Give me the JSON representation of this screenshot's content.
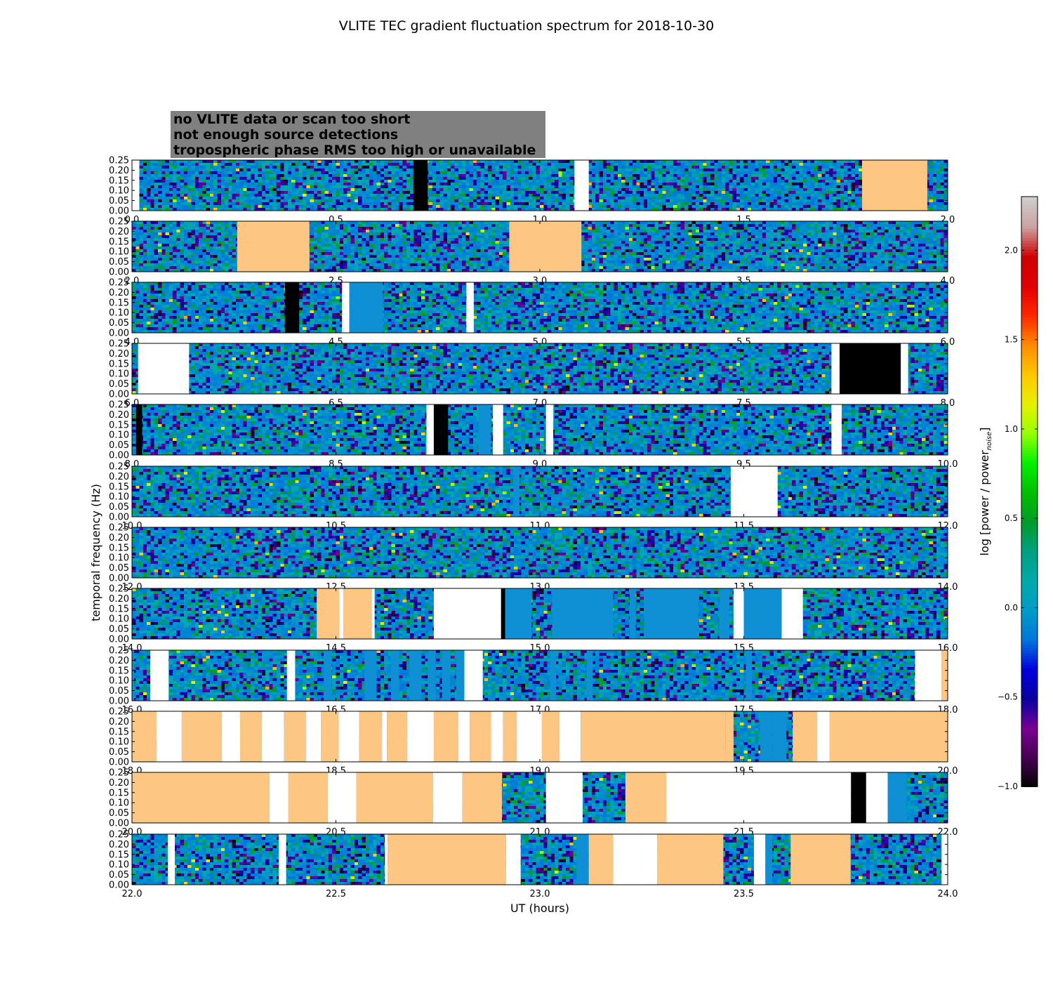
{
  "chart_data": {
    "type": "heatmap",
    "title": "VLITE TEC gradient fluctuation spectrum for 2018-10-30",
    "xlabel": "UT (hours)",
    "ylabel": "temporal frequency (Hz)",
    "colorbar_label_main": "log [power / power",
    "colorbar_label_sub": "noise",
    "colorbar_label_close": "]",
    "colorbar_range": [
      -1.0,
      2.3
    ],
    "colorbar_ticks": [
      "2.0",
      "1.5",
      "1.0",
      "0.5",
      "0.0",
      "−0.5",
      "−1.0"
    ],
    "colorbar_tick_values": [
      2.0,
      1.5,
      1.0,
      0.5,
      0.0,
      -0.5,
      -1.0
    ],
    "y_ticks": [
      "0.25",
      "0.20",
      "0.15",
      "0.10",
      "0.05",
      "0.00"
    ],
    "ylim": [
      0,
      0.25
    ],
    "colormap": "nipy_spectral",
    "legend": {
      "placement": "top-left",
      "items": [
        {
          "label": "no VLITE data or scan too short",
          "color": "#ffffff",
          "state": "no_data"
        },
        {
          "label": "not enough source detections",
          "color": "#000000",
          "state": "few_detections"
        },
        {
          "label": "tropospheric phase RMS too high or unavailable",
          "color": "#fdc682",
          "state": "tropo"
        }
      ]
    },
    "state_colors": {
      "no_data": "#ffffff",
      "few_detections": "#000000",
      "tropo": "#fdc682",
      "flat": "#0f8fd4"
    },
    "panels": [
      {
        "xlim": [
          0,
          2
        ],
        "x_ticks": [
          "0.0",
          "0.5",
          "1.0",
          "1.5",
          "2.0"
        ],
        "segments": [
          {
            "start": 0.0,
            "end": 0.018,
            "state": "no_data"
          },
          {
            "start": 0.69,
            "end": 0.725,
            "state": "few_detections"
          },
          {
            "start": 1.085,
            "end": 1.12,
            "state": "no_data"
          },
          {
            "start": 1.79,
            "end": 1.95,
            "state": "tropo"
          }
        ]
      },
      {
        "xlim": [
          2,
          4
        ],
        "x_ticks": [
          "2.0",
          "2.5",
          "3.0",
          "3.5",
          "4.0"
        ],
        "segments": [
          {
            "start": 2.258,
            "end": 2.435,
            "state": "tropo"
          },
          {
            "start": 2.925,
            "end": 3.102,
            "state": "tropo"
          }
        ]
      },
      {
        "xlim": [
          4,
          6
        ],
        "x_ticks": [
          "4.0",
          "4.5",
          "5.0",
          "5.5",
          "6.0"
        ],
        "segments": [
          {
            "start": 4.375,
            "end": 4.41,
            "state": "few_detections"
          },
          {
            "start": 4.515,
            "end": 4.533,
            "state": "no_data"
          },
          {
            "start": 4.533,
            "end": 4.615,
            "state": "flat"
          },
          {
            "start": 4.82,
            "end": 4.838,
            "state": "no_data"
          }
        ]
      },
      {
        "xlim": [
          6,
          8
        ],
        "x_ticks": [
          "6.0",
          "6.5",
          "7.0",
          "7.5",
          "8.0"
        ],
        "segments": [
          {
            "start": 6.015,
            "end": 6.14,
            "state": "no_data"
          },
          {
            "start": 7.715,
            "end": 7.735,
            "state": "no_data"
          },
          {
            "start": 7.735,
            "end": 7.885,
            "state": "few_detections"
          },
          {
            "start": 7.885,
            "end": 7.903,
            "state": "no_data"
          }
        ]
      },
      {
        "xlim": [
          8,
          10
        ],
        "x_ticks": [
          "8.0",
          "8.5",
          "9.0",
          "9.5",
          "10.0"
        ],
        "segments": [
          {
            "start": 8.01,
            "end": 8.025,
            "state": "few_detections"
          },
          {
            "start": 8.722,
            "end": 8.74,
            "state": "no_data"
          },
          {
            "start": 8.74,
            "end": 8.775,
            "state": "few_detections"
          },
          {
            "start": 8.85,
            "end": 8.88,
            "state": "flat"
          },
          {
            "start": 8.885,
            "end": 8.91,
            "state": "no_data"
          },
          {
            "start": 9.015,
            "end": 9.033,
            "state": "no_data"
          },
          {
            "start": 9.715,
            "end": 9.74,
            "state": "no_data"
          }
        ]
      },
      {
        "xlim": [
          10,
          12
        ],
        "x_ticks": [
          "10.0",
          "10.5",
          "11.0",
          "11.5",
          "12.0"
        ],
        "segments": [
          {
            "start": 10.935,
            "end": 10.95,
            "state": "flat"
          },
          {
            "start": 11.468,
            "end": 11.583,
            "state": "no_data"
          }
        ]
      },
      {
        "xlim": [
          12,
          14
        ],
        "x_ticks": [
          "12.0",
          "12.5",
          "13.0",
          "13.5",
          "14.0"
        ],
        "segments": []
      },
      {
        "xlim": [
          14,
          16
        ],
        "x_ticks": [
          "14.0",
          "14.5",
          "15.0",
          "15.5",
          "16.0"
        ],
        "segments": [
          {
            "start": 14.453,
            "end": 14.508,
            "state": "tropo"
          },
          {
            "start": 14.508,
            "end": 14.518,
            "state": "no_data"
          },
          {
            "start": 14.518,
            "end": 14.588,
            "state": "tropo"
          },
          {
            "start": 14.588,
            "end": 14.595,
            "state": "no_data"
          },
          {
            "start": 14.74,
            "end": 14.905,
            "state": "no_data"
          },
          {
            "start": 14.905,
            "end": 14.915,
            "state": "few_detections"
          },
          {
            "start": 14.915,
            "end": 14.98,
            "state": "flat"
          },
          {
            "start": 15.03,
            "end": 15.18,
            "state": "flat"
          },
          {
            "start": 15.22,
            "end": 15.235,
            "state": "flat"
          },
          {
            "start": 15.255,
            "end": 15.39,
            "state": "flat"
          },
          {
            "start": 15.44,
            "end": 15.465,
            "state": "flat"
          },
          {
            "start": 15.475,
            "end": 15.5,
            "state": "no_data"
          },
          {
            "start": 15.5,
            "end": 15.593,
            "state": "flat"
          },
          {
            "start": 15.593,
            "end": 15.645,
            "state": "no_data"
          }
        ]
      },
      {
        "xlim": [
          16,
          18
        ],
        "x_ticks": [
          "16.0",
          "16.5",
          "17.0",
          "17.5",
          "18.0"
        ],
        "segments": [
          {
            "start": 16.0,
            "end": 16.005,
            "state": "flat"
          },
          {
            "start": 16.045,
            "end": 16.09,
            "state": "no_data"
          },
          {
            "start": 16.38,
            "end": 16.4,
            "state": "no_data"
          },
          {
            "start": 16.47,
            "end": 16.49,
            "state": "flat"
          },
          {
            "start": 16.57,
            "end": 16.6,
            "state": "flat"
          },
          {
            "start": 16.635,
            "end": 16.655,
            "state": "flat"
          },
          {
            "start": 16.68,
            "end": 16.71,
            "state": "flat"
          },
          {
            "start": 16.725,
            "end": 16.745,
            "state": "flat"
          },
          {
            "start": 16.76,
            "end": 16.78,
            "state": "flat"
          },
          {
            "start": 16.795,
            "end": 16.815,
            "state": "flat"
          },
          {
            "start": 16.815,
            "end": 16.86,
            "state": "no_data"
          },
          {
            "start": 17.025,
            "end": 17.04,
            "state": "flat"
          },
          {
            "start": 17.115,
            "end": 17.13,
            "state": "flat"
          },
          {
            "start": 17.505,
            "end": 17.52,
            "state": "flat"
          },
          {
            "start": 17.92,
            "end": 17.985,
            "state": "no_data"
          },
          {
            "start": 17.985,
            "end": 18.0,
            "state": "tropo"
          }
        ]
      },
      {
        "xlim": [
          18,
          20
        ],
        "x_ticks": [
          "18.0",
          "18.5",
          "19.0",
          "19.5",
          "20.0"
        ],
        "segments": [
          {
            "start": 18.0,
            "end": 18.06,
            "state": "tropo"
          },
          {
            "start": 18.06,
            "end": 18.122,
            "state": "no_data"
          },
          {
            "start": 18.122,
            "end": 18.22,
            "state": "tropo"
          },
          {
            "start": 18.22,
            "end": 18.265,
            "state": "no_data"
          },
          {
            "start": 18.265,
            "end": 18.318,
            "state": "tropo"
          },
          {
            "start": 18.318,
            "end": 18.373,
            "state": "no_data"
          },
          {
            "start": 18.373,
            "end": 18.427,
            "state": "tropo"
          },
          {
            "start": 18.427,
            "end": 18.463,
            "state": "no_data"
          },
          {
            "start": 18.463,
            "end": 18.507,
            "state": "tropo"
          },
          {
            "start": 18.507,
            "end": 18.557,
            "state": "no_data"
          },
          {
            "start": 18.557,
            "end": 18.613,
            "state": "tropo"
          },
          {
            "start": 18.613,
            "end": 18.625,
            "state": "no_data"
          },
          {
            "start": 18.625,
            "end": 18.675,
            "state": "tropo"
          },
          {
            "start": 18.675,
            "end": 18.74,
            "state": "no_data"
          },
          {
            "start": 18.74,
            "end": 18.8,
            "state": "tropo"
          },
          {
            "start": 18.8,
            "end": 18.828,
            "state": "no_data"
          },
          {
            "start": 18.828,
            "end": 18.88,
            "state": "tropo"
          },
          {
            "start": 18.88,
            "end": 18.91,
            "state": "no_data"
          },
          {
            "start": 18.91,
            "end": 18.943,
            "state": "tropo"
          },
          {
            "start": 18.943,
            "end": 19.005,
            "state": "no_data"
          },
          {
            "start": 19.005,
            "end": 19.048,
            "state": "tropo"
          },
          {
            "start": 19.048,
            "end": 19.1,
            "state": "no_data"
          },
          {
            "start": 19.1,
            "end": 19.455,
            "state": "tropo"
          },
          {
            "start": 19.455,
            "end": 19.475,
            "state": "tropo"
          },
          {
            "start": 19.54,
            "end": 19.57,
            "state": "flat"
          },
          {
            "start": 19.57,
            "end": 19.605,
            "state": "flat"
          },
          {
            "start": 19.62,
            "end": 19.68,
            "state": "tropo"
          },
          {
            "start": 19.68,
            "end": 19.71,
            "state": "no_data"
          },
          {
            "start": 19.71,
            "end": 20.0,
            "state": "tropo"
          }
        ]
      },
      {
        "xlim": [
          20,
          22
        ],
        "x_ticks": [
          "20.0",
          "20.5",
          "21.0",
          "21.5",
          "22.0"
        ],
        "segments": [
          {
            "start": 20.0,
            "end": 20.337,
            "state": "tropo"
          },
          {
            "start": 20.337,
            "end": 20.383,
            "state": "no_data"
          },
          {
            "start": 20.383,
            "end": 20.48,
            "state": "tropo"
          },
          {
            "start": 20.48,
            "end": 20.55,
            "state": "no_data"
          },
          {
            "start": 20.55,
            "end": 20.738,
            "state": "tropo"
          },
          {
            "start": 20.738,
            "end": 20.81,
            "state": "no_data"
          },
          {
            "start": 20.81,
            "end": 20.907,
            "state": "tropo"
          },
          {
            "start": 21.015,
            "end": 21.105,
            "state": "no_data"
          },
          {
            "start": 21.21,
            "end": 21.31,
            "state": "tropo"
          },
          {
            "start": 21.31,
            "end": 21.763,
            "state": "no_data"
          },
          {
            "start": 21.763,
            "end": 21.8,
            "state": "few_detections"
          },
          {
            "start": 21.8,
            "end": 21.853,
            "state": "no_data"
          },
          {
            "start": 21.853,
            "end": 21.9,
            "state": "flat"
          }
        ]
      },
      {
        "xlim": [
          22,
          24
        ],
        "x_ticks": [
          "22.0",
          "22.5",
          "23.0",
          "23.5",
          "24.0"
        ],
        "segments": [
          {
            "start": 22.088,
            "end": 22.105,
            "state": "no_data"
          },
          {
            "start": 22.36,
            "end": 22.378,
            "state": "no_data"
          },
          {
            "start": 22.62,
            "end": 22.627,
            "state": "no_data"
          },
          {
            "start": 22.627,
            "end": 22.917,
            "state": "tropo"
          },
          {
            "start": 22.917,
            "end": 22.953,
            "state": "no_data"
          },
          {
            "start": 23.09,
            "end": 23.12,
            "state": "flat"
          },
          {
            "start": 23.12,
            "end": 23.18,
            "state": "tropo"
          },
          {
            "start": 23.18,
            "end": 23.288,
            "state": "no_data"
          },
          {
            "start": 23.288,
            "end": 23.45,
            "state": "tropo"
          },
          {
            "start": 23.525,
            "end": 23.553,
            "state": "no_data"
          },
          {
            "start": 23.553,
            "end": 23.57,
            "state": "flat"
          },
          {
            "start": 23.615,
            "end": 23.762,
            "state": "tropo"
          },
          {
            "start": 23.985,
            "end": 24.0,
            "state": "no_data"
          }
        ]
      }
    ]
  }
}
